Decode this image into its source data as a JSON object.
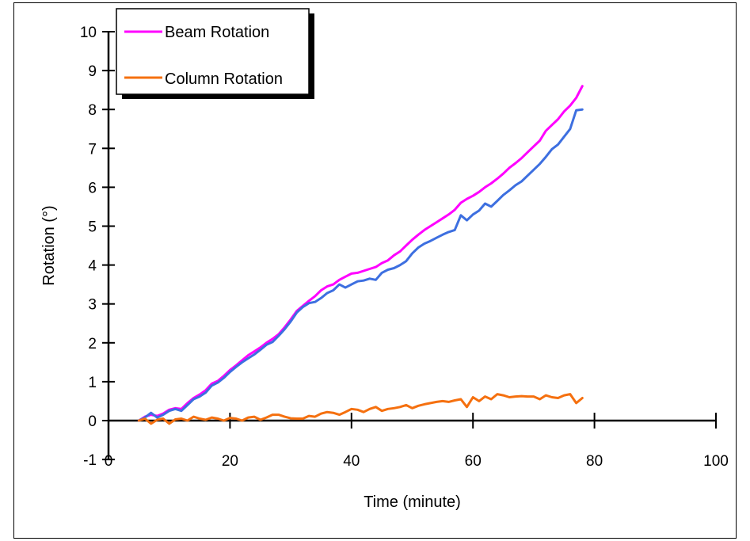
{
  "chart_data": {
    "type": "line",
    "title": "",
    "xlabel": "Time (minute)",
    "ylabel": "Rotation (°)",
    "xlim": [
      0,
      100
    ],
    "ylim": [
      -1,
      10
    ],
    "x_ticks": [
      0,
      20,
      40,
      60,
      80,
      100
    ],
    "y_ticks": [
      -1,
      0,
      1,
      2,
      3,
      4,
      5,
      6,
      7,
      8,
      9,
      10
    ],
    "grid": false,
    "legend_position": "top-left",
    "legend": [
      {
        "label": "Beam Rotation",
        "color": "#ff00ff"
      },
      {
        "label": "Column Rotation",
        "color": "#f5700f"
      }
    ],
    "series": [
      {
        "name": "Beam Rotation",
        "color": "#ff00ff",
        "x": [
          5,
          6,
          7,
          8,
          9,
          10,
          11,
          12,
          13,
          14,
          15,
          16,
          17,
          18,
          19,
          20,
          21,
          22,
          23,
          24,
          25,
          26,
          27,
          28,
          29,
          30,
          31,
          32,
          33,
          34,
          35,
          36,
          37,
          38,
          39,
          40,
          41,
          42,
          43,
          44,
          45,
          46,
          47,
          48,
          49,
          50,
          51,
          52,
          53,
          54,
          55,
          56,
          57,
          58,
          59,
          60,
          61,
          62,
          63,
          64,
          65,
          66,
          67,
          68,
          69,
          70,
          71,
          72,
          73,
          74,
          75,
          76,
          77,
          78
        ],
        "y": [
          0.0,
          0.1,
          0.15,
          0.12,
          0.18,
          0.28,
          0.32,
          0.3,
          0.45,
          0.58,
          0.67,
          0.78,
          0.95,
          1.02,
          1.15,
          1.3,
          1.42,
          1.55,
          1.68,
          1.78,
          1.88,
          2.0,
          2.1,
          2.22,
          2.4,
          2.6,
          2.82,
          2.95,
          3.08,
          3.2,
          3.35,
          3.45,
          3.5,
          3.62,
          3.7,
          3.78,
          3.8,
          3.85,
          3.9,
          3.95,
          4.05,
          4.12,
          4.25,
          4.35,
          4.5,
          4.65,
          4.78,
          4.9,
          5.0,
          5.1,
          5.2,
          5.3,
          5.42,
          5.6,
          5.7,
          5.78,
          5.88,
          6.0,
          6.1,
          6.22,
          6.35,
          6.5,
          6.62,
          6.75,
          6.9,
          7.05,
          7.2,
          7.45,
          7.6,
          7.75,
          7.95,
          8.1,
          8.3,
          8.6
        ]
      },
      {
        "name": "",
        "color": "#3d6fe0",
        "x": [
          5,
          6,
          7,
          8,
          9,
          10,
          11,
          12,
          13,
          14,
          15,
          16,
          17,
          18,
          19,
          20,
          21,
          22,
          23,
          24,
          25,
          26,
          27,
          28,
          29,
          30,
          31,
          32,
          33,
          34,
          35,
          36,
          37,
          38,
          39,
          40,
          41,
          42,
          43,
          44,
          45,
          46,
          47,
          48,
          49,
          50,
          51,
          52,
          53,
          54,
          55,
          56,
          57,
          58,
          59,
          60,
          61,
          62,
          63,
          64,
          65,
          66,
          67,
          68,
          69,
          70,
          71,
          72,
          73,
          74,
          75,
          76,
          77,
          78
        ],
        "y": [
          0.0,
          0.08,
          0.2,
          0.08,
          0.15,
          0.25,
          0.3,
          0.25,
          0.4,
          0.55,
          0.62,
          0.72,
          0.9,
          0.98,
          1.1,
          1.25,
          1.38,
          1.5,
          1.6,
          1.7,
          1.82,
          1.95,
          2.02,
          2.18,
          2.35,
          2.55,
          2.78,
          2.92,
          3.02,
          3.05,
          3.15,
          3.28,
          3.35,
          3.5,
          3.42,
          3.5,
          3.58,
          3.6,
          3.65,
          3.62,
          3.8,
          3.88,
          3.92,
          4.0,
          4.1,
          4.3,
          4.45,
          4.55,
          4.62,
          4.7,
          4.78,
          4.85,
          4.9,
          5.28,
          5.15,
          5.3,
          5.4,
          5.58,
          5.5,
          5.65,
          5.8,
          5.92,
          6.05,
          6.15,
          6.3,
          6.45,
          6.6,
          6.78,
          6.98,
          7.1,
          7.3,
          7.5,
          7.98,
          8.0
        ]
      },
      {
        "name": "Column Rotation",
        "color": "#f5700f",
        "x": [
          5,
          6,
          7,
          8,
          9,
          10,
          11,
          12,
          13,
          14,
          15,
          16,
          17,
          18,
          19,
          20,
          21,
          22,
          23,
          24,
          25,
          26,
          27,
          28,
          29,
          30,
          31,
          32,
          33,
          34,
          35,
          36,
          37,
          38,
          39,
          40,
          41,
          42,
          43,
          44,
          45,
          46,
          47,
          48,
          49,
          50,
          51,
          52,
          53,
          54,
          55,
          56,
          57,
          58,
          59,
          60,
          61,
          62,
          63,
          64,
          65,
          66,
          67,
          68,
          69,
          70,
          71,
          72,
          73,
          74,
          75,
          76,
          77,
          78
        ],
        "y": [
          0.0,
          0.05,
          -0.08,
          0.02,
          0.05,
          -0.08,
          0.03,
          0.05,
          0.0,
          0.1,
          0.05,
          0.02,
          0.08,
          0.05,
          0.0,
          0.07,
          0.05,
          0.0,
          0.08,
          0.1,
          0.02,
          0.08,
          0.15,
          0.15,
          0.1,
          0.06,
          0.05,
          0.05,
          0.12,
          0.1,
          0.18,
          0.22,
          0.2,
          0.15,
          0.22,
          0.3,
          0.28,
          0.22,
          0.3,
          0.35,
          0.25,
          0.3,
          0.32,
          0.35,
          0.4,
          0.32,
          0.38,
          0.42,
          0.45,
          0.48,
          0.5,
          0.48,
          0.52,
          0.55,
          0.35,
          0.6,
          0.5,
          0.62,
          0.55,
          0.68,
          0.65,
          0.6,
          0.62,
          0.63,
          0.62,
          0.62,
          0.55,
          0.65,
          0.6,
          0.58,
          0.65,
          0.68,
          0.45,
          0.58
        ]
      }
    ]
  }
}
